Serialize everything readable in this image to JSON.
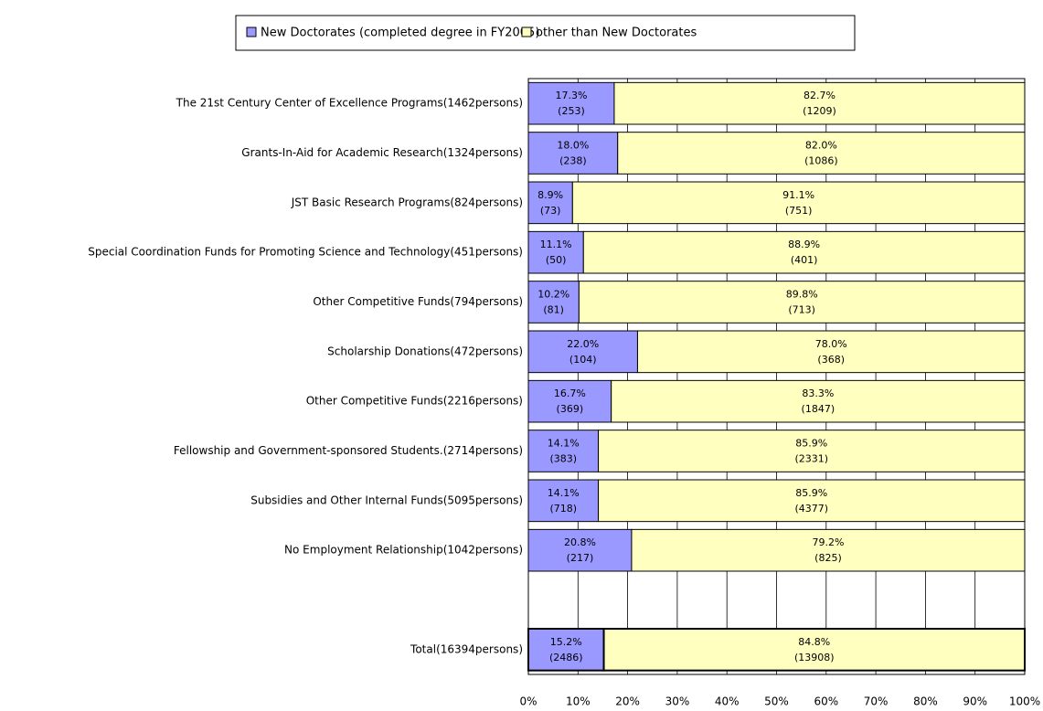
{
  "chart_data": {
    "type": "stacked_bar_horizontal",
    "categories": [
      "The 21st Century Center of Excellence Programs(1462persons)",
      "Grants-In-Aid for Academic Research(1324persons)",
      "JST Basic Research Programs(824persons)",
      "Special Coordination Funds for Promoting Science and Technology(451persons)",
      "Other Competitive Funds(794persons)",
      "Scholarship Donations(472persons)",
      "Other Competitive Funds(2216persons)",
      "Fellowship and Government-sponsored Students.(2714persons)",
      "Subsidies and Other Internal Funds(5095persons)",
      "No Employment Relationship(1042persons)",
      null,
      "Total(16394persons)"
    ],
    "series": [
      {
        "name": "New Doctorates (completed degree in FY2005)",
        "color": "#9999ff",
        "values": [
          17.3,
          18.0,
          8.9,
          11.1,
          10.2,
          22.0,
          16.7,
          14.1,
          14.1,
          20.8,
          null,
          15.2
        ],
        "value_labels": [
          "17.3%",
          "18.0%",
          "8.9%",
          "11.1%",
          "10.2%",
          "22.0%",
          "16.7%",
          "14.1%",
          "14.1%",
          "20.8%",
          null,
          "15.2%"
        ],
        "count_labels": [
          "(253)",
          "(238)",
          "(73)",
          "(50)",
          "(81)",
          "(104)",
          "(369)",
          "(383)",
          "(718)",
          "(217)",
          null,
          "(2486)"
        ]
      },
      {
        "name": "other than New Doctorates",
        "color": "#ffffc0",
        "values": [
          82.7,
          82.0,
          91.1,
          88.9,
          89.8,
          78.0,
          83.3,
          85.9,
          85.9,
          79.2,
          null,
          84.8
        ],
        "value_labels": [
          "82.7%",
          "82.0%",
          "91.1%",
          "88.9%",
          "89.8%",
          "78.0%",
          "83.3%",
          "85.9%",
          "85.9%",
          "79.2%",
          null,
          "84.8%"
        ],
        "count_labels": [
          "(1209)",
          "(1086)",
          "(751)",
          "(401)",
          "(713)",
          "(368)",
          "(1847)",
          "(2331)",
          "(4377)",
          "(825)",
          null,
          "(13908)"
        ]
      }
    ],
    "xlim": [
      0,
      100
    ],
    "xticks": [
      {
        "value": 0,
        "label": "0%"
      },
      {
        "value": 10,
        "label": "10%"
      },
      {
        "value": 20,
        "label": "20%"
      },
      {
        "value": 30,
        "label": "30%"
      },
      {
        "value": 40,
        "label": "40%"
      },
      {
        "value": 50,
        "label": "50%"
      },
      {
        "value": 60,
        "label": "60%"
      },
      {
        "value": 70,
        "label": "70%"
      },
      {
        "value": 80,
        "label": "80%"
      },
      {
        "value": 90,
        "label": "90%"
      },
      {
        "value": 100,
        "label": "100%"
      }
    ],
    "grid": true,
    "legend": "top"
  }
}
